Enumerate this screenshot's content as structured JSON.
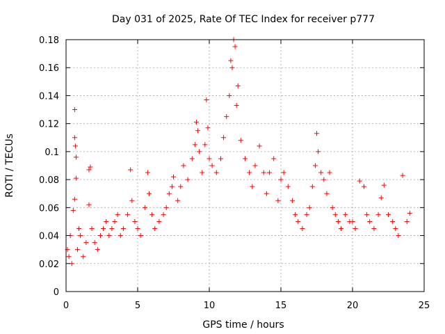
{
  "chart_data": {
    "type": "scatter",
    "title": "Day 031 of 2025, Rate Of TEC Index for receiver p777",
    "xlabel": "GPS time / hours",
    "ylabel": "ROTI / TECUs",
    "xlim": [
      0,
      25
    ],
    "ylim": [
      0,
      0.18
    ],
    "x_ticks": [
      "0",
      "5",
      "10",
      "15",
      "20",
      "25"
    ],
    "y_ticks": [
      "0",
      "0.02",
      "0.04",
      "0.06",
      "0.08",
      "0.1",
      "0.12",
      "0.14",
      "0.16",
      "0.18"
    ],
    "grid": true,
    "marker": "+",
    "color": "#ff0000",
    "series": [
      {
        "x": [
          0.1,
          0.2,
          0.3,
          0.4,
          0.5,
          0.6,
          0.6,
          0.65,
          0.7,
          0.6,
          0.7,
          0.8,
          0.9,
          1.0,
          1.2,
          1.4,
          1.6,
          1.6,
          1.7,
          1.8,
          2.0,
          2.2,
          2.4,
          2.6,
          2.8,
          3.0,
          3.2,
          3.4,
          3.6,
          3.8,
          4.0,
          4.3,
          4.5,
          4.6,
          4.8,
          5.0,
          5.2,
          5.5,
          5.7,
          5.8,
          6.0,
          6.2,
          6.5,
          6.8,
          7.0,
          7.2,
          7.4,
          7.5,
          7.8,
          8.0,
          8.2,
          8.5,
          8.8,
          9.0,
          9.1,
          9.2,
          9.3,
          9.5,
          9.7,
          9.8,
          9.9,
          10.0,
          10.2,
          10.5,
          10.8,
          11.0,
          11.2,
          11.4,
          11.5,
          11.6,
          11.7,
          11.8,
          11.9,
          12.0,
          12.2,
          12.5,
          12.8,
          13.0,
          13.2,
          13.5,
          13.8,
          14.0,
          14.2,
          14.5,
          14.8,
          15.0,
          15.2,
          15.5,
          15.8,
          16.0,
          16.2,
          16.5,
          16.8,
          17.0,
          17.2,
          17.4,
          17.5,
          17.6,
          17.8,
          18.0,
          18.2,
          18.4,
          18.6,
          18.8,
          19.0,
          19.2,
          19.5,
          19.8,
          20.0,
          20.2,
          20.5,
          20.8,
          21.0,
          21.2,
          21.5,
          21.8,
          22.0,
          22.2,
          22.5,
          22.8,
          23.0,
          23.2,
          23.5,
          23.8,
          24.0
        ],
        "y": [
          0.03,
          0.025,
          0.04,
          0.02,
          0.058,
          0.13,
          0.11,
          0.104,
          0.096,
          0.066,
          0.081,
          0.03,
          0.045,
          0.04,
          0.025,
          0.035,
          0.062,
          0.087,
          0.089,
          0.045,
          0.035,
          0.03,
          0.04,
          0.045,
          0.05,
          0.04,
          0.045,
          0.05,
          0.055,
          0.04,
          0.045,
          0.055,
          0.087,
          0.065,
          0.05,
          0.045,
          0.04,
          0.06,
          0.085,
          0.07,
          0.055,
          0.045,
          0.05,
          0.055,
          0.06,
          0.07,
          0.075,
          0.082,
          0.065,
          0.075,
          0.09,
          0.08,
          0.095,
          0.105,
          0.121,
          0.115,
          0.1,
          0.085,
          0.105,
          0.137,
          0.117,
          0.095,
          0.09,
          0.085,
          0.095,
          0.11,
          0.125,
          0.14,
          0.165,
          0.16,
          0.18,
          0.175,
          0.133,
          0.147,
          0.108,
          0.095,
          0.085,
          0.075,
          0.09,
          0.104,
          0.085,
          0.07,
          0.085,
          0.095,
          0.065,
          0.08,
          0.085,
          0.075,
          0.065,
          0.055,
          0.05,
          0.045,
          0.055,
          0.06,
          0.075,
          0.09,
          0.113,
          0.1,
          0.085,
          0.08,
          0.07,
          0.085,
          0.06,
          0.055,
          0.05,
          0.045,
          0.055,
          0.05,
          0.05,
          0.045,
          0.079,
          0.075,
          0.055,
          0.05,
          0.045,
          0.055,
          0.067,
          0.076,
          0.055,
          0.05,
          0.045,
          0.04,
          0.083,
          0.05,
          0.056
        ]
      }
    ]
  }
}
